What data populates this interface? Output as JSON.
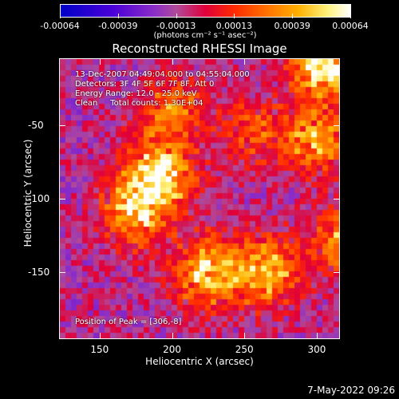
{
  "colorbar": {
    "ticks": [
      "-0.00064",
      "-0.00039",
      "-0.00013",
      "0.00013",
      "0.00039",
      "0.00064"
    ],
    "units": "(photons cm⁻² s⁻¹ asec⁻²)"
  },
  "title": "Reconstructed RHESSI Image",
  "annotations": {
    "time_range": "13-Dec-2007 04:49:04.000 to 04:55:04.000",
    "detectors": "Detectors: 3F 4F 5F 6F 7F 8F, Att 0",
    "energy_range": "Energy Range: 12.0 - 25.0 keV",
    "algorithm_counts": "Clean     Total counts: 1.30E+04",
    "peak": "Position of Peak = [306,-8]"
  },
  "axes": {
    "xlabel": "Heliocentric X (arcsec)",
    "ylabel": "Heliocentric Y (arcsec)",
    "xticks": [
      "150",
      "200",
      "250",
      "300"
    ],
    "yticks": [
      "-50",
      "-100",
      "-150"
    ]
  },
  "footer": {
    "date": "7-May-2022 09:26"
  },
  "chart_data": {
    "type": "heatmap",
    "title": "Reconstructed RHESSI Image",
    "xlabel": "Heliocentric X (arcsec)",
    "ylabel": "Heliocentric Y (arcsec)",
    "xlim": [
      122,
      316
    ],
    "ylim": [
      -196,
      -4
    ],
    "zlim": [
      -0.00064,
      0.00064
    ],
    "colorbar_ticks": [
      -0.00064,
      -0.00039,
      -0.00013,
      0.00013,
      0.00039,
      0.00064
    ],
    "peak": [
      306,
      -8
    ],
    "bright_regions": [
      {
        "x": 190,
        "y": -85,
        "intensity": 0.00064
      },
      {
        "x": 225,
        "y": -150,
        "intensity": 0.0005
      },
      {
        "x": 265,
        "y": -150,
        "intensity": 0.00045
      },
      {
        "x": 306,
        "y": -8,
        "intensity": 0.00064
      },
      {
        "x": 300,
        "y": -60,
        "intensity": 0.00039
      },
      {
        "x": 175,
        "y": -110,
        "intensity": 0.00039
      },
      {
        "x": 200,
        "y": -40,
        "intensity": 0.0003
      },
      {
        "x": 255,
        "y": -55,
        "intensity": 0.0002
      },
      {
        "x": 320,
        "y": -130,
        "intensity": 0.00035
      }
    ]
  }
}
